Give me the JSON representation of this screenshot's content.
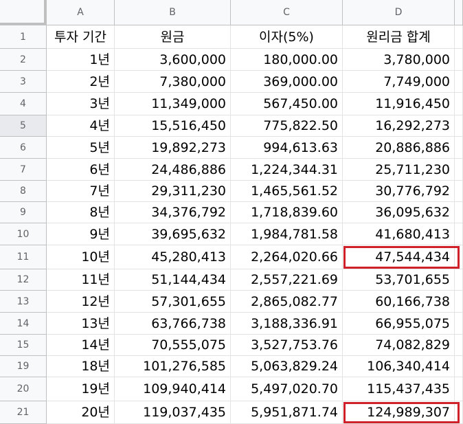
{
  "columns": [
    "A",
    "B",
    "C",
    "D"
  ],
  "header_row": {
    "row_number": "1",
    "cells": [
      "투자 기간",
      "원금",
      "이자(5%)",
      "원리금 합계"
    ]
  },
  "rows": [
    {
      "row_number": "2",
      "cells": [
        "1년",
        "3,600,000",
        "180,000.00",
        "3,780,000"
      ]
    },
    {
      "row_number": "3",
      "cells": [
        "2년",
        "7,380,000",
        "369,000.00",
        "7,749,000"
      ]
    },
    {
      "row_number": "4",
      "cells": [
        "3년",
        "11,349,000",
        "567,450.00",
        "11,916,450"
      ]
    },
    {
      "row_number": "5",
      "cells": [
        "4년",
        "15,516,450",
        "775,822.50",
        "16,292,273"
      ]
    },
    {
      "row_number": "6",
      "cells": [
        "5년",
        "19,892,273",
        "994,613.63",
        "20,886,886"
      ]
    },
    {
      "row_number": "7",
      "cells": [
        "6년",
        "24,486,886",
        "1,224,344.31",
        "25,711,230"
      ]
    },
    {
      "row_number": "8",
      "cells": [
        "7년",
        "29,311,230",
        "1,465,561.52",
        "30,776,792"
      ]
    },
    {
      "row_number": "9",
      "cells": [
        "8년",
        "34,376,792",
        "1,718,839.60",
        "36,095,632"
      ]
    },
    {
      "row_number": "10",
      "cells": [
        "9년",
        "39,695,632",
        "1,984,781.58",
        "41,680,413"
      ]
    },
    {
      "row_number": "11",
      "cells": [
        "10년",
        "45,280,413",
        "2,264,020.66",
        "47,544,434"
      ]
    },
    {
      "row_number": "12",
      "cells": [
        "11년",
        "51,144,434",
        "2,557,221.69",
        "53,701,655"
      ]
    },
    {
      "row_number": "13",
      "cells": [
        "12년",
        "57,301,655",
        "2,865,082.77",
        "60,166,738"
      ]
    },
    {
      "row_number": "14",
      "cells": [
        "13년",
        "63,766,738",
        "3,188,336.91",
        "66,955,075"
      ]
    },
    {
      "row_number": "15",
      "cells": [
        "14년",
        "70,555,075",
        "3,527,753.76",
        "74,082,829"
      ]
    },
    {
      "row_number": "19",
      "cells": [
        "18년",
        "101,276,585",
        "5,063,829.24",
        "106,340,414"
      ]
    },
    {
      "row_number": "20",
      "cells": [
        "19년",
        "109,940,414",
        "5,497,020.70",
        "115,437,435"
      ]
    },
    {
      "row_number": "21",
      "cells": [
        "20년",
        "119,037,435",
        "5,951,871.74",
        "124,989,307"
      ]
    }
  ],
  "selected_row_number": "5",
  "highlighted_cells": [
    {
      "row_number": "11",
      "column": "D"
    },
    {
      "row_number": "21",
      "column": "D"
    }
  ],
  "colors": {
    "header_bg": "#f8f9fa",
    "selected_row_header_bg": "#e8eaed",
    "gridline": "#e2e3e3",
    "highlight_border": "#d0202a"
  }
}
